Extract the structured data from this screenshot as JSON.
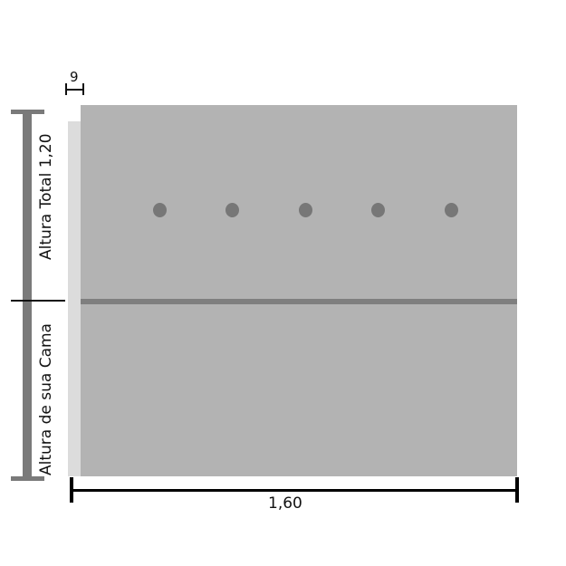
{
  "labels": {
    "total_height": "Altura Total 1,20",
    "bed_height": "Altura de sua Cama",
    "width": "1,60",
    "depth": "9"
  },
  "headboard": {
    "button_count": 5
  },
  "colors": {
    "panel": "#b3b3b3",
    "side": "#dcdcdc",
    "stripe": "#7f7f7f",
    "button": "#777777",
    "dimension_bar": "#7a7a7a"
  }
}
